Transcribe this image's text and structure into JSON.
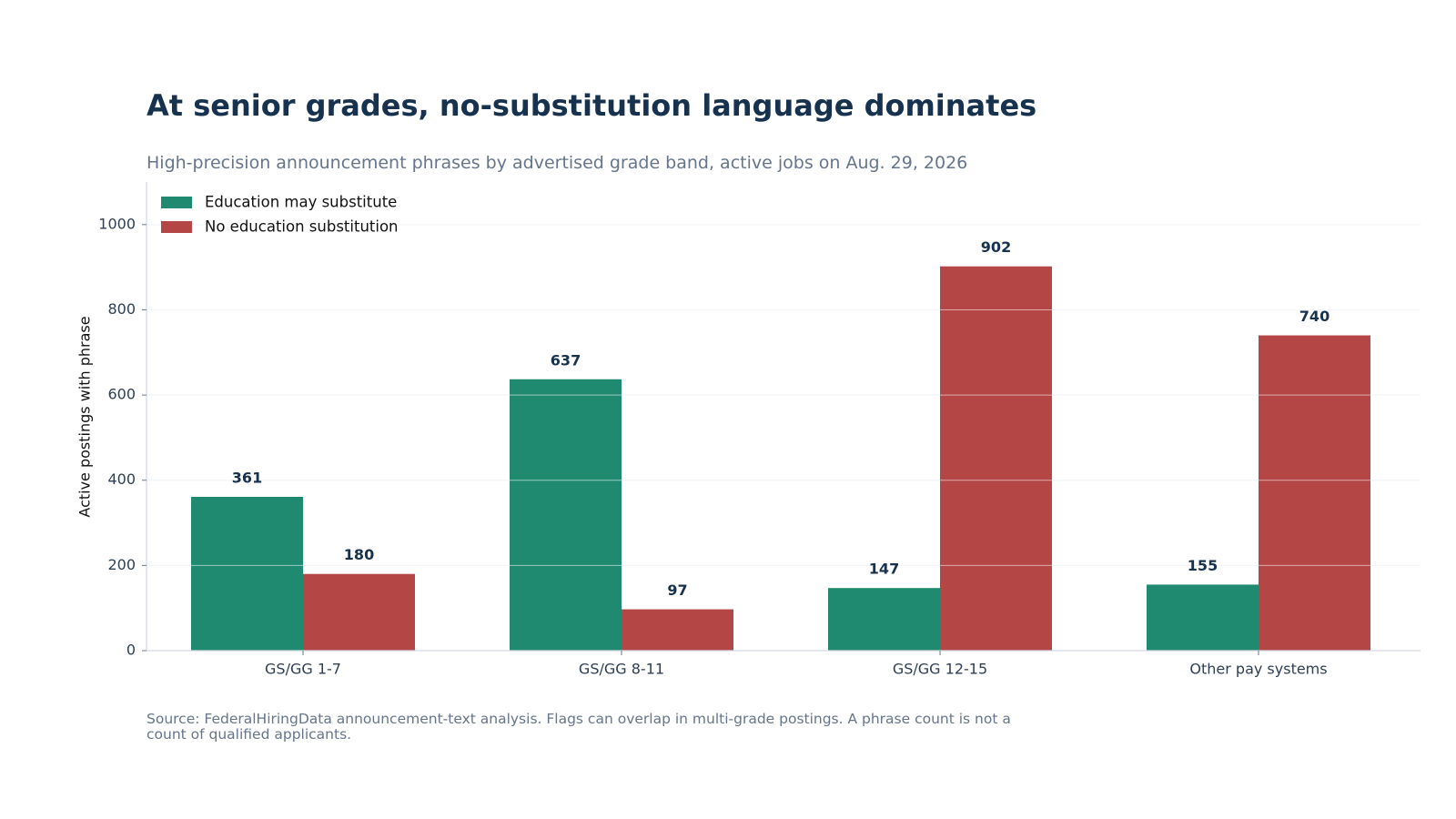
{
  "chart_data": {
    "type": "bar",
    "title": "At senior grades, no-substitution language dominates",
    "subtitle": "High-precision announcement phrases by advertised grade band, active jobs on Aug. 29, 2026",
    "xlabel": "",
    "ylabel": "Active postings with phrase",
    "ylim": [
      0,
      1100
    ],
    "yticks": [
      "0",
      "200",
      "400",
      "600",
      "800",
      "1000"
    ],
    "grid": true,
    "legend_position": "top-left",
    "categories": [
      "GS/GG 1-7",
      "GS/GG 8-11",
      "GS/GG 12-15",
      "Other pay systems"
    ],
    "series": [
      {
        "name": "Education may substitute",
        "color": "#1f8a70",
        "values": [
          361,
          637,
          147,
          155
        ],
        "labels": [
          "361",
          "637",
          "147",
          "155"
        ]
      },
      {
        "name": "No education substitution",
        "color": "#b44646",
        "values": [
          180,
          97,
          902,
          740
        ],
        "labels": [
          "180",
          "97",
          "902",
          "740"
        ]
      }
    ],
    "source": "Source: FederalHiringData announcement-text analysis. Flags can overlap in multi-grade postings. A phrase count is not a count of qualified applicants."
  }
}
